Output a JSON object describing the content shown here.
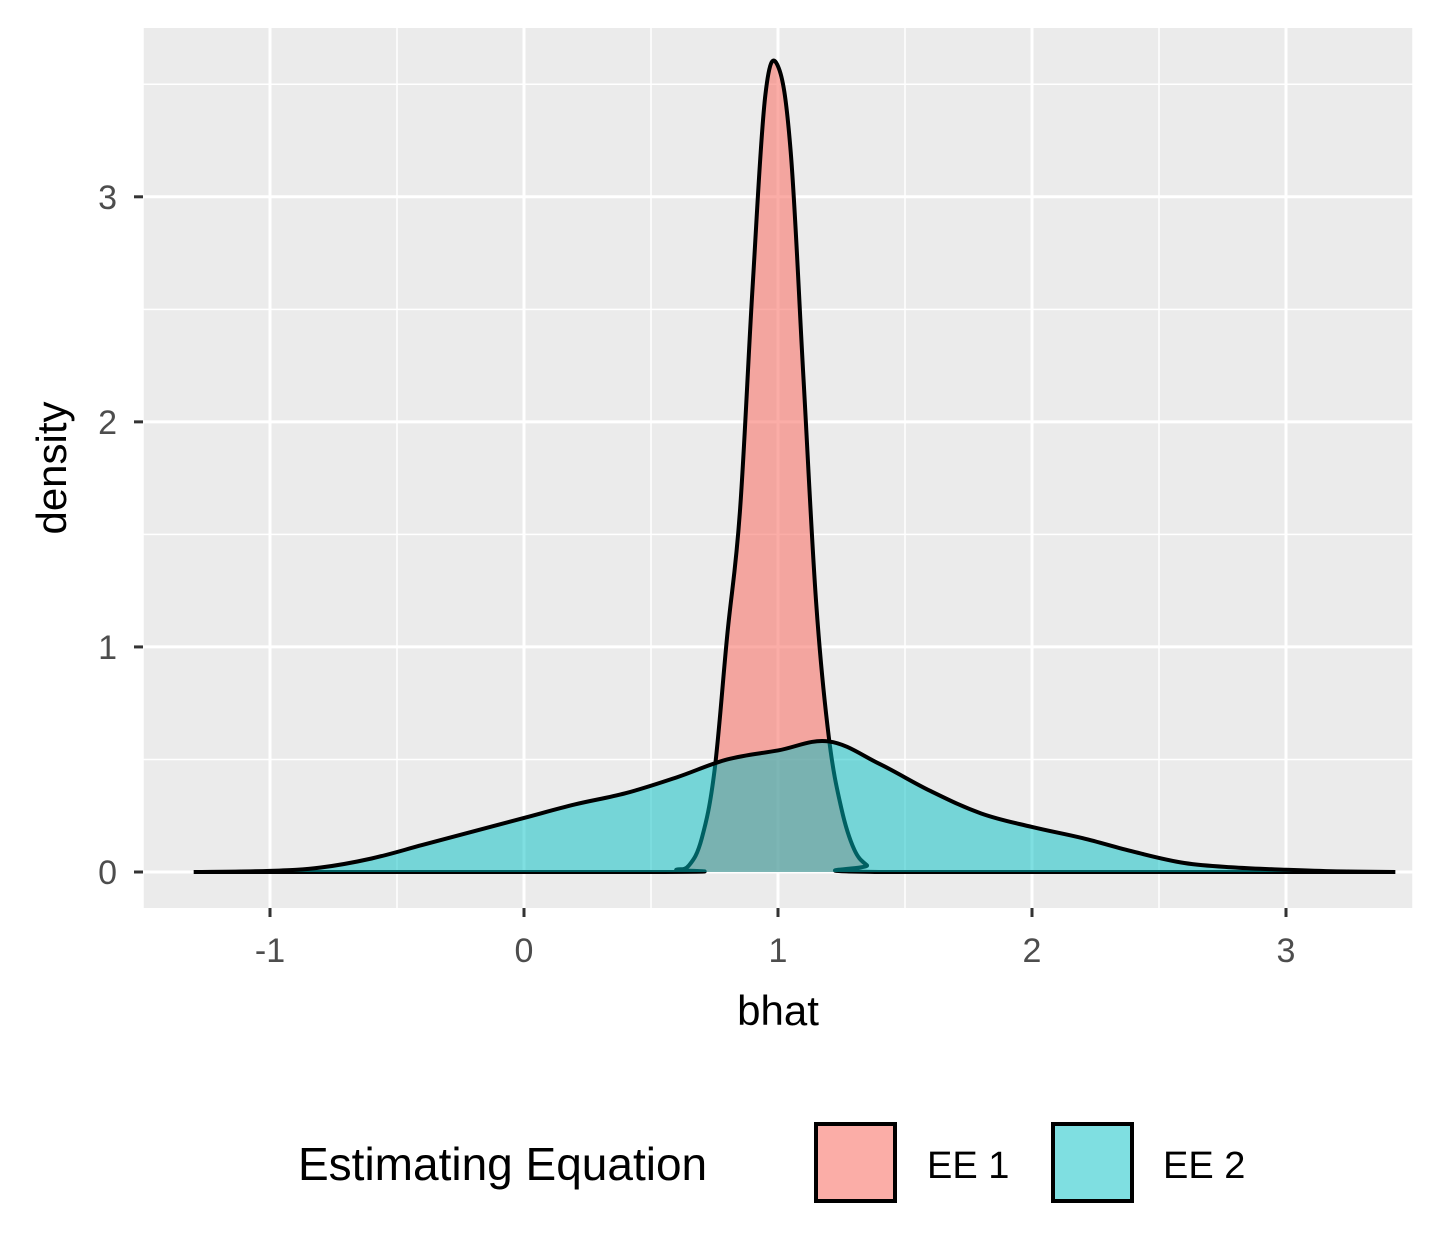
{
  "chart_data": {
    "type": "area",
    "xlabel": "bhat",
    "ylabel": "density",
    "xlim": [
      -1.5,
      3.5
    ],
    "ylim": [
      -0.16,
      3.75
    ],
    "x_ticks": [
      -1,
      0,
      1,
      2,
      3
    ],
    "x_tick_labels": [
      "-1",
      "0",
      "1",
      "2",
      "3"
    ],
    "y_ticks": [
      0,
      1,
      2,
      3
    ],
    "y_tick_labels": [
      "0",
      "1",
      "2",
      "3"
    ],
    "grid": true,
    "legend": {
      "title": "Estimating Equation",
      "position": "bottom",
      "entries": [
        "EE 1",
        "EE 2"
      ]
    },
    "series": [
      {
        "name": "EE 1",
        "color": "#F8766D",
        "x": [
          -1.3,
          0.55,
          0.6,
          0.65,
          0.7,
          0.75,
          0.8,
          0.85,
          0.9,
          0.95,
          1.0,
          1.05,
          1.1,
          1.15,
          1.2,
          1.25,
          1.3,
          1.35,
          1.4,
          3.43
        ],
        "y": [
          0,
          0,
          0.01,
          0.03,
          0.15,
          0.45,
          1.05,
          1.6,
          2.6,
          3.45,
          3.58,
          3.2,
          2.2,
          1.2,
          0.6,
          0.28,
          0.1,
          0.03,
          0,
          0
        ]
      },
      {
        "name": "EE 2",
        "color": "#00BFC4",
        "x": [
          -1.3,
          -1.0,
          -0.8,
          -0.6,
          -0.4,
          -0.2,
          0.0,
          0.2,
          0.4,
          0.6,
          0.8,
          1.0,
          1.2,
          1.4,
          1.6,
          1.8,
          2.0,
          2.2,
          2.4,
          2.6,
          2.8,
          3.0,
          3.2,
          3.43
        ],
        "y": [
          0,
          0.005,
          0.02,
          0.06,
          0.12,
          0.18,
          0.24,
          0.3,
          0.35,
          0.42,
          0.5,
          0.54,
          0.58,
          0.48,
          0.36,
          0.26,
          0.2,
          0.15,
          0.09,
          0.04,
          0.02,
          0.01,
          0.003,
          0
        ]
      }
    ]
  }
}
